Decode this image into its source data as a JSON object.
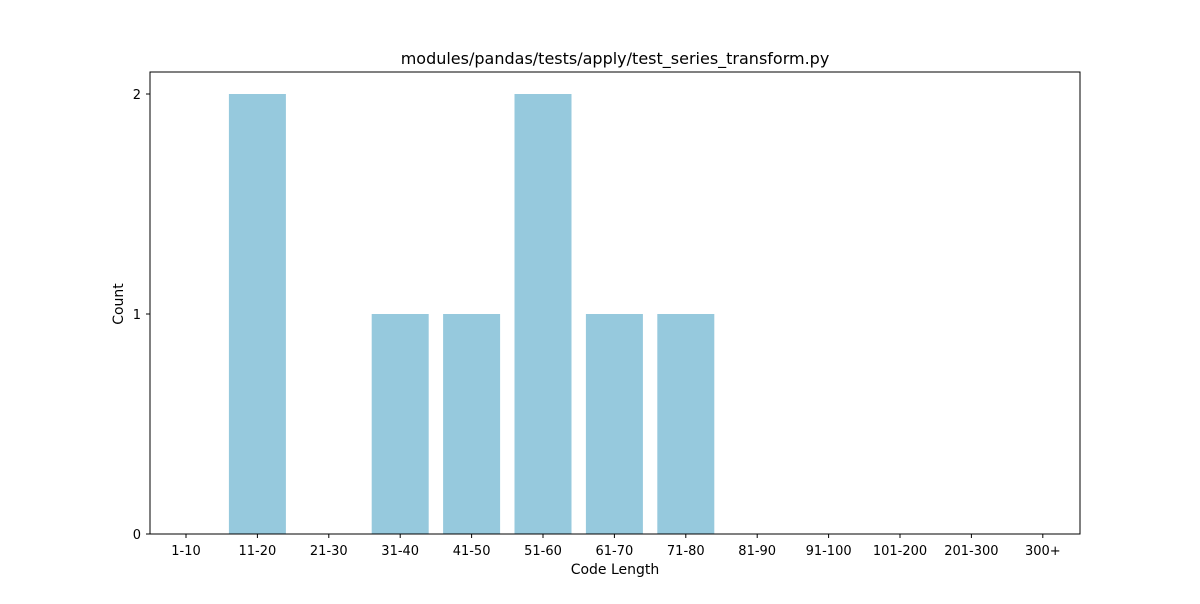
{
  "chart_data": {
    "type": "bar",
    "title": "modules/pandas/tests/apply/test_series_transform.py",
    "xlabel": "Code Length",
    "ylabel": "Count",
    "categories": [
      "1-10",
      "11-20",
      "21-30",
      "31-40",
      "41-50",
      "51-60",
      "61-70",
      "71-80",
      "81-90",
      "91-100",
      "101-200",
      "201-300",
      "300+"
    ],
    "values": [
      0,
      2,
      0,
      1,
      1,
      2,
      1,
      1,
      0,
      0,
      0,
      0,
      0
    ],
    "yticks": [
      0,
      1,
      2
    ],
    "ylim": [
      0,
      2.1
    ],
    "grid": false,
    "legend": "none",
    "bar_color": "#96c9dd"
  }
}
